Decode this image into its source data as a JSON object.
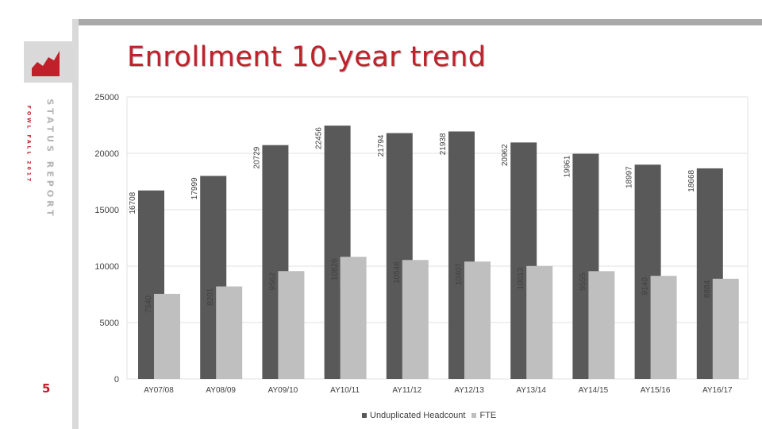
{
  "slide": {
    "title": "Enrollment 10-year trend",
    "side_label": "STATUS REPORT",
    "side_sublabel": "FOWL FALL 2017",
    "page_number": "5",
    "logo_icon": "rising-chart-icon"
  },
  "colors": {
    "accent": "#c0202a",
    "headcount": "#595959",
    "fte": "#bfbfbf",
    "grid": "#e0e0e0"
  },
  "chart_data": {
    "type": "bar",
    "categories": [
      "AY07/08",
      "AY08/09",
      "AY09/10",
      "AY10/11",
      "AY11/12",
      "AY12/13",
      "AY13/14",
      "AY14/15",
      "AY15/16",
      "AY16/17"
    ],
    "series": [
      {
        "name": "Unduplicated Headcount",
        "values": [
          16708,
          17999,
          20729,
          22456,
          21794,
          21938,
          20962,
          19961,
          18997,
          18668
        ]
      },
      {
        "name": "FTE",
        "values": [
          7540,
          8201,
          9562,
          10826,
          10546,
          10407,
          10013,
          9555,
          9140,
          8884
        ]
      }
    ],
    "y_ticks": [
      "0",
      "5000",
      "10000",
      "15000",
      "20000",
      "25000"
    ],
    "ylim": [
      0,
      25000
    ],
    "grid": true,
    "legend_position": "bottom",
    "data_labels": true
  }
}
